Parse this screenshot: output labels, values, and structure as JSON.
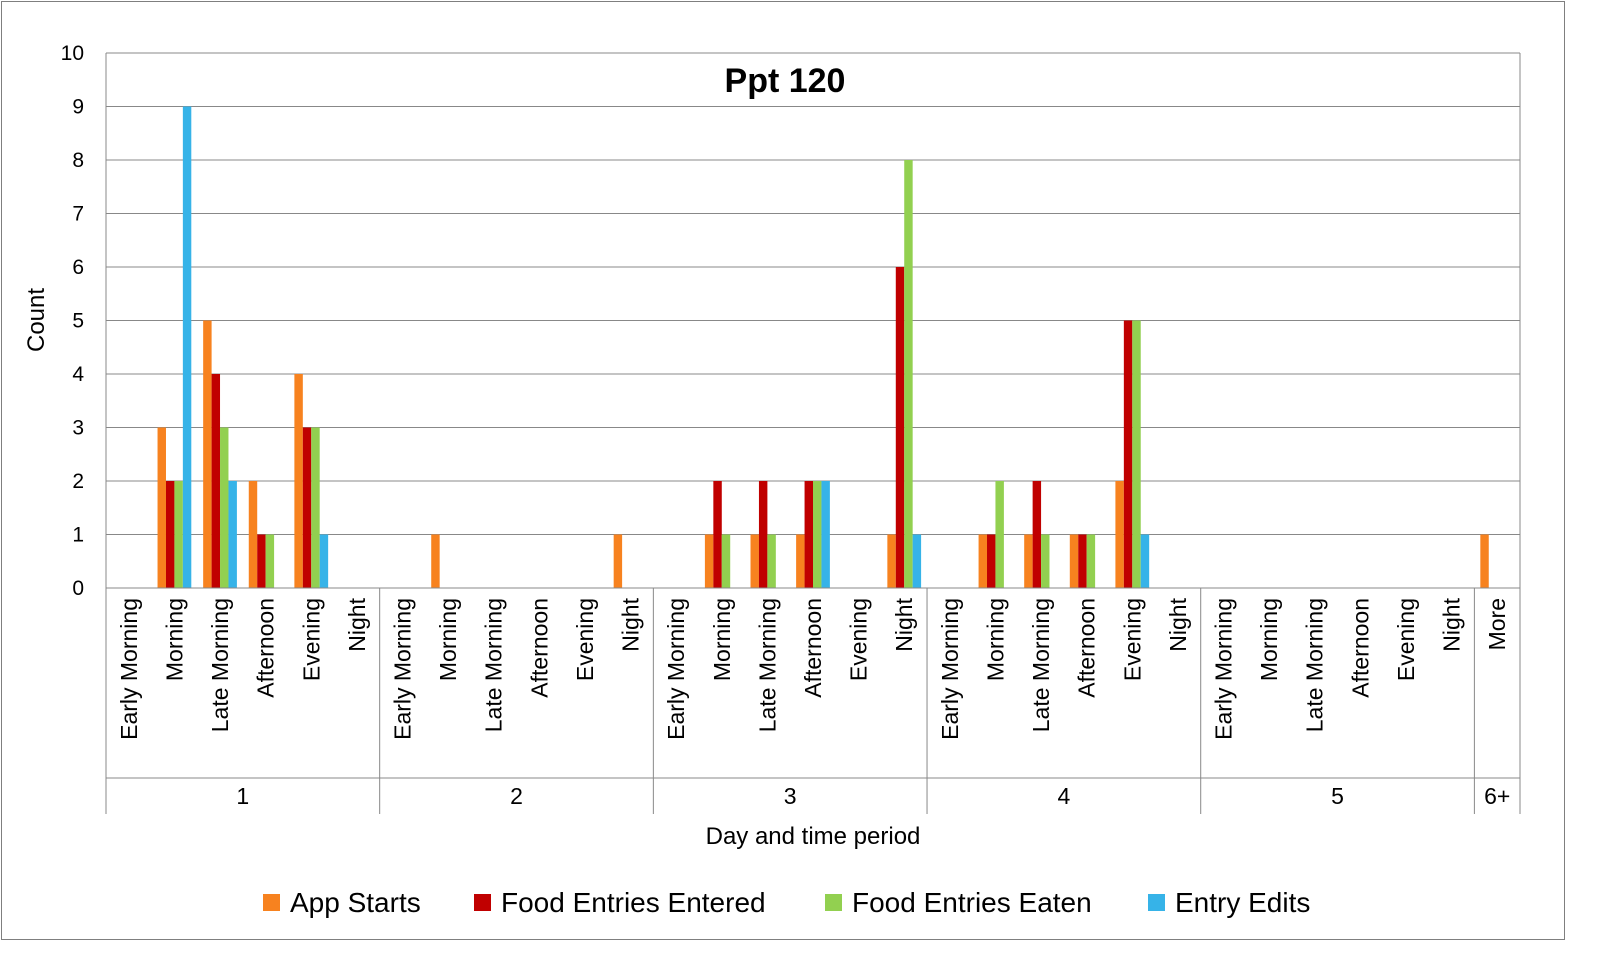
{
  "chart_data": {
    "type": "bar",
    "title": "Ppt 120",
    "xlabel": "Day and  time period",
    "ylabel": "Count",
    "ylim": [
      0,
      10
    ],
    "yticks": [
      "0",
      "1",
      "2",
      "3",
      "4",
      "5",
      "6",
      "7",
      "8",
      "9",
      "10"
    ],
    "grid": true,
    "legend_position": "bottom",
    "groups": [
      {
        "label": "1",
        "categories": [
          "Early Morning",
          "Morning",
          "Late Morning",
          "Afternoon",
          "Evening",
          "Night"
        ]
      },
      {
        "label": "2",
        "categories": [
          "Early Morning",
          "Morning",
          "Late Morning",
          "Afternoon",
          "Evening",
          "Night"
        ]
      },
      {
        "label": "3",
        "categories": [
          "Early Morning",
          "Morning",
          "Late Morning",
          "Afternoon",
          "Evening",
          "Night"
        ]
      },
      {
        "label": "4",
        "categories": [
          "Early Morning",
          "Morning",
          "Late Morning",
          "Afternoon",
          "Evening",
          "Night"
        ]
      },
      {
        "label": "5",
        "categories": [
          "Early Morning",
          "Morning",
          "Late Morning",
          "Afternoon",
          "Evening",
          "Night"
        ]
      },
      {
        "label": "6+",
        "categories": [
          "More"
        ]
      }
    ],
    "series": [
      {
        "name": "App Starts",
        "color": "#f7821f",
        "values": [
          0,
          3,
          5,
          2,
          4,
          0,
          0,
          1,
          0,
          0,
          0,
          1,
          0,
          1,
          1,
          1,
          0,
          1,
          0,
          1,
          1,
          1,
          2,
          0,
          0,
          0,
          0,
          0,
          0,
          0,
          1
        ]
      },
      {
        "name": "Food Entries Entered",
        "color": "#c00000",
        "values": [
          0,
          2,
          4,
          1,
          3,
          0,
          0,
          0,
          0,
          0,
          0,
          0,
          0,
          2,
          2,
          2,
          0,
          6,
          0,
          1,
          2,
          1,
          5,
          0,
          0,
          0,
          0,
          0,
          0,
          0,
          0
        ]
      },
      {
        "name": "Food Entries Eaten",
        "color": "#92d050",
        "values": [
          0,
          2,
          3,
          1,
          3,
          0,
          0,
          0,
          0,
          0,
          0,
          0,
          0,
          1,
          1,
          2,
          0,
          8,
          0,
          2,
          1,
          1,
          5,
          0,
          0,
          0,
          0,
          0,
          0,
          0,
          0
        ]
      },
      {
        "name": "Entry Edits",
        "color": "#36b3e8",
        "values": [
          0,
          9,
          2,
          0,
          1,
          0,
          0,
          0,
          0,
          0,
          0,
          0,
          0,
          0,
          0,
          2,
          0,
          1,
          0,
          0,
          0,
          0,
          1,
          0,
          0,
          0,
          0,
          0,
          0,
          0,
          0
        ]
      }
    ]
  }
}
